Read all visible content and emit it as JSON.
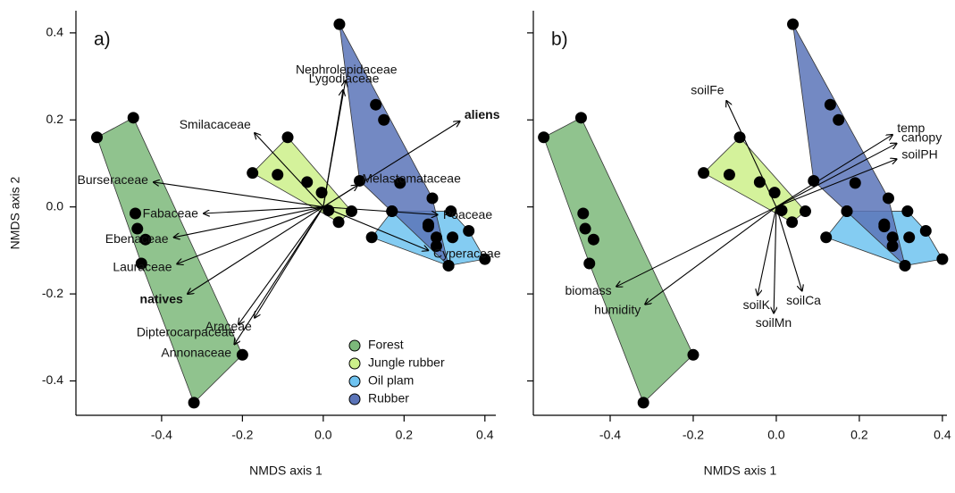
{
  "chart_data": [
    {
      "type": "scatter",
      "panel_label": "a)",
      "xlabel": "NMDS axis 1",
      "ylabel": "NMDS axis 2",
      "xlim": [
        -0.612,
        0.427
      ],
      "ylim": [
        -0.479,
        0.451
      ],
      "xticks": [
        -0.4,
        -0.2,
        {
          "value": 0,
          "label": "0.0"
        },
        0.2,
        0.4
      ],
      "yticks": [
        -0.4,
        -0.2,
        {
          "value": 0,
          "label": "0.0"
        },
        0.2,
        0.4
      ],
      "ytick_labels": true,
      "legend": "bottom-right",
      "hulls": true,
      "series": [
        {
          "name": "Forest",
          "color": "#7cb87a",
          "x": [
            -0.56,
            -0.47,
            -0.465,
            -0.46,
            -0.44,
            -0.45,
            -0.32,
            -0.2
          ],
          "y": [
            0.16,
            0.205,
            -0.015,
            -0.05,
            -0.075,
            -0.13,
            -0.45,
            -0.34
          ]
        },
        {
          "name": "Jungle rubber",
          "color": "#ccf08a",
          "x": [
            -0.175,
            -0.088,
            -0.113,
            -0.04,
            -0.004,
            0.013,
            0.038,
            0.07
          ],
          "y": [
            0.078,
            0.16,
            0.074,
            0.057,
            0.033,
            -0.008,
            -0.035,
            -0.01
          ]
        },
        {
          "name": "Oil plam",
          "color": "#6ec3f0",
          "x": [
            0.12,
            0.17,
            0.316,
            0.36,
            0.4,
            0.26,
            0.32,
            0.28,
            0.31
          ],
          "y": [
            -0.07,
            -0.01,
            -0.01,
            -0.055,
            -0.12,
            -0.045,
            -0.07,
            -0.09,
            -0.135
          ]
        },
        {
          "name": "Rubber",
          "color": "#5b74b8",
          "x": [
            0.04,
            0.13,
            0.15,
            0.09,
            0.19,
            0.27,
            0.26,
            0.31,
            0.17,
            0.28
          ],
          "y": [
            0.42,
            0.235,
            0.2,
            0.06,
            0.055,
            0.02,
            -0.04,
            -0.135,
            -0.01,
            -0.07
          ]
        }
      ],
      "arrows": [
        {
          "name": "Lygodiaceae",
          "x": 0.049,
          "y": 0.269
        },
        {
          "name": "Nephrolepidaceae",
          "x": 0.055,
          "y": 0.29
        },
        {
          "name": "Smilacaceae",
          "x": -0.17,
          "y": 0.17
        },
        {
          "name": "aliens",
          "x": 0.338,
          "y": 0.197,
          "bold": true
        },
        {
          "name": "Melastomataceae",
          "x": 0.085,
          "y": 0.05
        },
        {
          "name": "Burseraceae",
          "x": -0.42,
          "y": 0.057
        },
        {
          "name": "Fabaceae",
          "x": -0.296,
          "y": -0.015
        },
        {
          "name": "Ebenaceae",
          "x": -0.37,
          "y": -0.07
        },
        {
          "name": "Lauraceae",
          "x": -0.362,
          "y": -0.131
        },
        {
          "name": "natives",
          "x": -0.336,
          "y": -0.2,
          "bold": true
        },
        {
          "name": "Dipterocarpaceae",
          "x": -0.21,
          "y": -0.27
        },
        {
          "name": "Annonaceae",
          "x": -0.22,
          "y": -0.316
        },
        {
          "name": "Araceae",
          "x": -0.17,
          "y": -0.255
        },
        {
          "name": "Poaceae",
          "x": 0.283,
          "y": -0.018
        },
        {
          "name": "Cyperaceae",
          "x": 0.26,
          "y": -0.1
        }
      ]
    },
    {
      "type": "scatter",
      "panel_label": "b)",
      "xlabel": "NMDS axis 1",
      "xlim": [
        -0.585,
        0.411
      ],
      "ylim": [
        -0.479,
        0.451
      ],
      "xticks": [
        -0.4,
        -0.2,
        {
          "value": 0,
          "label": "0.0"
        },
        0.2,
        0.4
      ],
      "yticks": [
        -0.4,
        -0.2,
        0,
        0.2,
        0.4
      ],
      "ytick_labels": false,
      "legend": false,
      "hulls": true,
      "series": [
        {
          "name": "Forest",
          "color": "#7cb87a",
          "x": [
            -0.56,
            -0.47,
            -0.465,
            -0.46,
            -0.44,
            -0.45,
            -0.32,
            -0.2
          ],
          "y": [
            0.16,
            0.205,
            -0.015,
            -0.05,
            -0.075,
            -0.13,
            -0.45,
            -0.34
          ]
        },
        {
          "name": "Jungle rubber",
          "color": "#ccf08a",
          "x": [
            -0.175,
            -0.088,
            -0.113,
            -0.04,
            -0.004,
            0.013,
            0.038,
            0.07
          ],
          "y": [
            0.078,
            0.16,
            0.074,
            0.057,
            0.033,
            -0.008,
            -0.035,
            -0.01
          ]
        },
        {
          "name": "Oil plam",
          "color": "#6ec3f0",
          "x": [
            0.12,
            0.17,
            0.316,
            0.36,
            0.4,
            0.26,
            0.32,
            0.28,
            0.31
          ],
          "y": [
            -0.07,
            -0.01,
            -0.01,
            -0.055,
            -0.12,
            -0.045,
            -0.07,
            -0.09,
            -0.135
          ]
        },
        {
          "name": "Rubber",
          "color": "#5b74b8",
          "x": [
            0.04,
            0.13,
            0.15,
            0.09,
            0.19,
            0.27,
            0.26,
            0.31,
            0.17,
            0.28
          ],
          "y": [
            0.42,
            0.235,
            0.2,
            0.06,
            0.055,
            0.02,
            -0.04,
            -0.135,
            -0.01,
            -0.07
          ]
        }
      ],
      "arrows": [
        {
          "name": "soilFe",
          "x": -0.12,
          "y": 0.244
        },
        {
          "name": "temp",
          "x": 0.28,
          "y": 0.166
        },
        {
          "name": "canopy",
          "x": 0.29,
          "y": 0.146
        },
        {
          "name": "soilPH",
          "x": 0.29,
          "y": 0.11
        },
        {
          "name": "biomass",
          "x": -0.385,
          "y": -0.183
        },
        {
          "name": "humidity",
          "x": -0.316,
          "y": -0.224
        },
        {
          "name": "soilK",
          "x": -0.045,
          "y": -0.203
        },
        {
          "name": "soilMn",
          "x": -0.006,
          "y": -0.244
        },
        {
          "name": "soilCa",
          "x": 0.062,
          "y": -0.193
        }
      ]
    }
  ]
}
